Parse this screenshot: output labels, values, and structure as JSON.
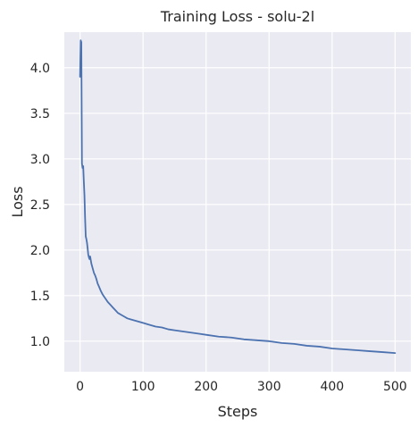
{
  "chart_data": {
    "type": "line",
    "title": "Training Loss - solu-2l",
    "xlabel": "Steps",
    "ylabel": "Loss",
    "xlim": [
      -25,
      525
    ],
    "ylim": [
      0.665,
      4.39
    ],
    "xticks": [
      0,
      100,
      200,
      300,
      400,
      500
    ],
    "xtick_labels": [
      "0",
      "100",
      "200",
      "300",
      "400",
      "500"
    ],
    "yticks": [
      1.0,
      1.5,
      2.0,
      2.5,
      3.0,
      3.5,
      4.0
    ],
    "ytick_labels": [
      "1.0",
      "1.5",
      "2.0",
      "2.5",
      "3.0",
      "3.5",
      "4.0"
    ],
    "grid": true,
    "background_color": "#eaeaf2",
    "grid_color": "#ffffff",
    "line_color": "#4c72b0",
    "series": [
      {
        "values_note": "",
        "x": [
          0,
          1,
          2,
          3,
          4,
          5,
          6,
          7,
          8,
          9,
          10,
          11,
          12,
          13,
          14,
          15,
          16,
          18,
          20,
          22,
          24,
          26,
          28,
          30,
          33,
          36,
          40,
          44,
          48,
          52,
          56,
          60,
          65,
          70,
          75,
          80,
          85,
          90,
          95,
          100,
          110,
          120,
          130,
          140,
          150,
          160,
          170,
          180,
          190,
          200,
          220,
          240,
          260,
          280,
          300,
          320,
          340,
          360,
          380,
          400,
          420,
          440,
          460,
          480,
          500
        ],
        "y": [
          3.9,
          4.3,
          4.28,
          2.95,
          2.9,
          2.92,
          2.75,
          2.6,
          2.35,
          2.15,
          2.12,
          2.08,
          2.02,
          1.95,
          1.92,
          1.9,
          1.93,
          1.85,
          1.8,
          1.75,
          1.72,
          1.68,
          1.63,
          1.6,
          1.55,
          1.51,
          1.47,
          1.43,
          1.4,
          1.37,
          1.34,
          1.31,
          1.29,
          1.27,
          1.25,
          1.24,
          1.23,
          1.22,
          1.21,
          1.2,
          1.18,
          1.16,
          1.15,
          1.13,
          1.12,
          1.11,
          1.1,
          1.09,
          1.08,
          1.07,
          1.05,
          1.04,
          1.02,
          1.01,
          1.0,
          0.98,
          0.97,
          0.95,
          0.94,
          0.92,
          0.91,
          0.9,
          0.89,
          0.88,
          0.87
        ]
      }
    ]
  }
}
